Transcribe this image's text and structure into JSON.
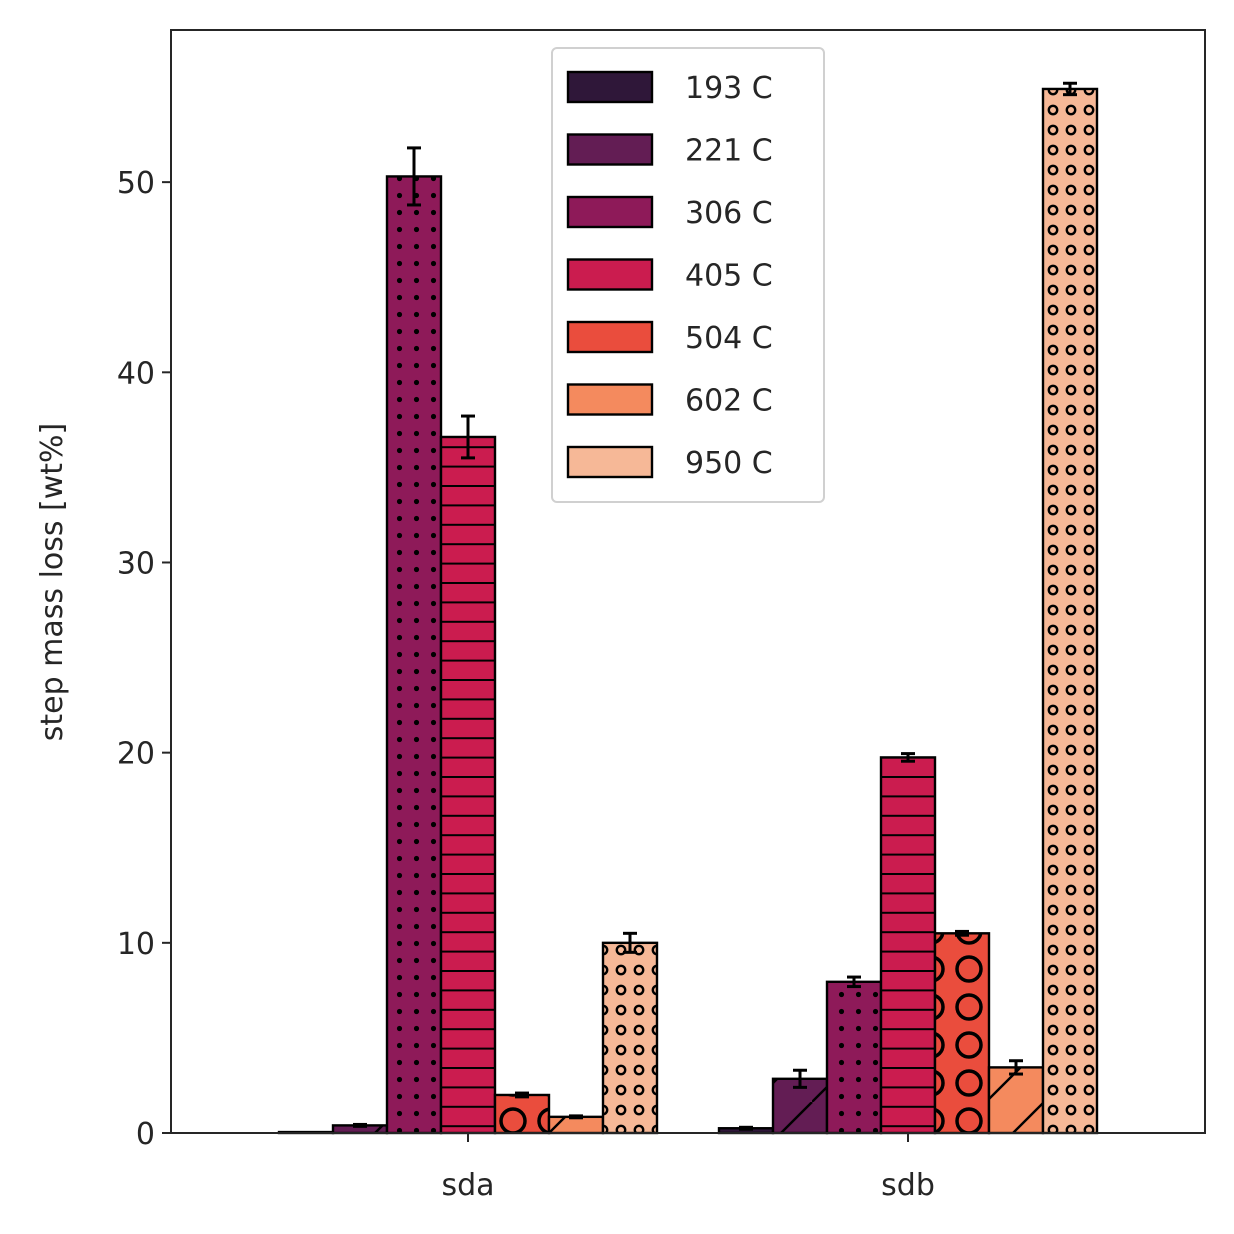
{
  "chart_data": {
    "type": "bar",
    "title": "",
    "xlabel": "",
    "ylabel": "step mass loss [wt%]",
    "ylim": [
      0,
      58
    ],
    "yticks": [
      0,
      10,
      20,
      30,
      40,
      50
    ],
    "grid": false,
    "legend_position": "top-center",
    "categories": [
      "sda",
      "sdb"
    ],
    "series": [
      {
        "name": "193 C",
        "color": "#2f1739",
        "hatch": "none",
        "values": [
          0.05,
          0.25
        ],
        "errors": [
          0.0,
          0.05
        ]
      },
      {
        "name": "221 C",
        "color": "#631d54",
        "hatch": "diag",
        "values": [
          0.4,
          2.85
        ],
        "errors": [
          0.05,
          0.45
        ]
      },
      {
        "name": "306 C",
        "color": "#8e1a59",
        "hatch": "dots",
        "values": [
          50.3,
          7.95
        ],
        "errors": [
          1.5,
          0.25
        ]
      },
      {
        "name": "405 C",
        "color": "#cb1c4f",
        "hatch": "hlines",
        "values": [
          36.6,
          19.75
        ],
        "errors": [
          1.1,
          0.2
        ]
      },
      {
        "name": "504 C",
        "color": "#ea4d3d",
        "hatch": "circles",
        "values": [
          2.0,
          10.5
        ],
        "errors": [
          0.1,
          0.1
        ]
      },
      {
        "name": "602 C",
        "color": "#f48a5e",
        "hatch": "diag",
        "values": [
          0.85,
          3.45
        ],
        "errors": [
          0.05,
          0.35
        ]
      },
      {
        "name": "950 C",
        "color": "#f6b897",
        "hatch": "rings",
        "values": [
          10.0,
          54.9
        ],
        "errors": [
          0.5,
          0.3
        ]
      }
    ]
  }
}
